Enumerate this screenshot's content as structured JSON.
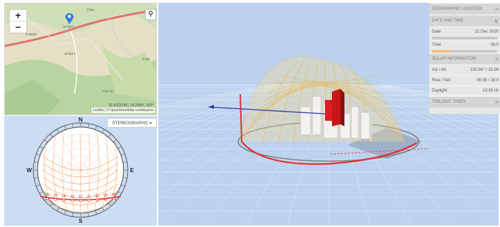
{
  "map": {
    "zoom_in": "+",
    "zoom_out": "−",
    "search_icon": "search-icon",
    "marker_label": "ירושלים",
    "scale_top": "2 km",
    "scale_right": "2 km",
    "coords": "31.5623155°, 34.2564°, 520°",
    "attribution": "Leaflet | © OpenStreetMap contributors",
    "labels": [
      "ירושלים",
      "מבשרת",
      "הר אדר"
    ]
  },
  "sun_dial": {
    "mode_button": "STEREOGRAPHIC ▾",
    "north": "N",
    "south": "S",
    "east": "E",
    "west": "W",
    "hours": [
      "16",
      "15",
      "14",
      "13",
      "12",
      "11",
      "10",
      "09",
      "08"
    ]
  },
  "info": {
    "sections": [
      {
        "title": "GEOGRAPHIC LOCATION",
        "chevron": ">"
      },
      {
        "title": "DATE AND TIME",
        "chevron": "∨"
      },
      {
        "title": "SOLAR INFORMATION",
        "chevron": ">"
      },
      {
        "title": "TWILIGHT TIMES",
        "chevron": ">"
      }
    ],
    "date_label": "Date",
    "date_value": "21 Dec 2020",
    "time_label": "Time",
    "time_value": "08:0",
    "time_progress": 0.3,
    "azi_label": "Azi / Alt:",
    "azi_value": "130.94° / 15.56",
    "rise_label": "Rise / Set:",
    "rise_value": "06:35 / 16:4",
    "daylight_label": "Daylight:",
    "daylight_value": "10:05 Hr"
  },
  "colors": {
    "dome": "#e8b850",
    "sun_path": "#e03030",
    "building": "#c81818",
    "grid": "#ffffff",
    "scene_bg": "#bcd2ee"
  }
}
